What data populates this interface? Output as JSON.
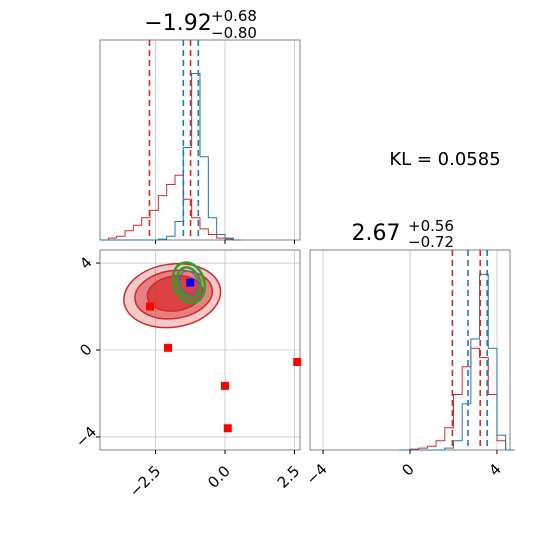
{
  "colors": {
    "red": "#d62728",
    "blue": "#1f77b4",
    "green": "#2ca02c",
    "marker_blue": "#0000ff",
    "marker_red": "#ff0000",
    "grid": "#b0b0b0",
    "frame": "#808080"
  },
  "kl_text": "KL = 0.0585",
  "chart_data": [
    {
      "panel": "top-left",
      "type": "line",
      "title": {
        "main": "−1.92",
        "sup": "+0.68",
        "sub": "−0.80"
      },
      "xlim": [
        -4.5,
        2.7
      ],
      "ylim": [
        0,
        1.0
      ],
      "grid": true,
      "step_x": [
        -4.5,
        -4.2,
        -3.9,
        -3.6,
        -3.3,
        -3.0,
        -2.7,
        -2.4,
        -2.1,
        -1.8,
        -1.5,
        -1.2,
        -0.9,
        -0.6,
        -0.3,
        0.0,
        0.3
      ],
      "series": [
        {
          "color": "red",
          "values": [
            0.0,
            0.01,
            0.02,
            0.05,
            0.08,
            0.12,
            0.16,
            0.24,
            0.3,
            0.35,
            0.22,
            0.12,
            0.06,
            0.03,
            0.01,
            0.005,
            0.0
          ]
        },
        {
          "color": "blue",
          "values": [
            0.0,
            0.0,
            0.0,
            0.0,
            0.0,
            0.0,
            0.0,
            0.005,
            0.02,
            0.1,
            0.5,
            0.9,
            0.45,
            0.12,
            0.03,
            0.01,
            0.0
          ]
        }
      ],
      "vlines": [
        {
          "color": "red",
          "x": -2.72
        },
        {
          "color": "red",
          "x": -1.24
        },
        {
          "color": "blue",
          "x": -1.5
        },
        {
          "color": "blue",
          "x": -0.96
        }
      ]
    },
    {
      "panel": "bottom-left",
      "type": "scatter",
      "xlim": [
        -4.5,
        2.7
      ],
      "ylim": [
        -4.6,
        4.6
      ],
      "xticks": [
        "−2.5",
        "0.0",
        "2.5"
      ],
      "xtick_values": [
        -2.5,
        0.0,
        2.5
      ],
      "yticks": [
        "−4",
        "0",
        "4"
      ],
      "ytick_values": [
        -4,
        0,
        4
      ],
      "grid": true,
      "blue_marker": {
        "x": -1.25,
        "y": 3.1
      },
      "red_markers": [
        {
          "x": -2.7,
          "y": 2.0
        },
        {
          "x": -2.05,
          "y": 0.1
        },
        {
          "x": 0.0,
          "y": -1.65
        },
        {
          "x": 0.1,
          "y": -3.6
        },
        {
          "x": 2.6,
          "y": -0.55
        }
      ],
      "red_contours": [
        {
          "cx": -1.9,
          "cy": 2.5,
          "rx": 1.75,
          "ry": 1.45,
          "opacity": 0.25
        },
        {
          "cx": -1.85,
          "cy": 2.55,
          "rx": 1.4,
          "ry": 1.1,
          "opacity": 0.45
        },
        {
          "cx": -1.8,
          "cy": 2.6,
          "rx": 1.0,
          "ry": 0.8,
          "opacity": 0.7
        }
      ],
      "green_contours": [
        {
          "cx": -1.3,
          "cy": 3.1,
          "rx": 0.55,
          "ry": 0.95
        },
        {
          "cx": -1.3,
          "cy": 3.1,
          "rx": 0.4,
          "ry": 0.72
        }
      ],
      "blue_contours": [
        {
          "cx": -1.3,
          "cy": 3.1,
          "rx": 0.32,
          "ry": 0.55
        }
      ]
    },
    {
      "panel": "bottom-right",
      "type": "line",
      "title": {
        "main": "2.67",
        "sup": "+0.56",
        "sub": "−0.72"
      },
      "xlim": [
        -4.6,
        4.6
      ],
      "ylim": [
        0,
        1.0
      ],
      "xticks": [
        "−4",
        "0",
        "4"
      ],
      "xtick_values": [
        -4,
        0,
        4
      ],
      "grid": true,
      "step_x": [
        -0.5,
        0.0,
        0.4,
        0.8,
        1.2,
        1.6,
        2.0,
        2.4,
        2.8,
        3.2,
        3.6,
        4.0,
        4.4
      ],
      "series": [
        {
          "color": "red",
          "values": [
            0.0,
            0.005,
            0.01,
            0.02,
            0.05,
            0.12,
            0.3,
            0.45,
            0.55,
            0.5,
            0.3,
            0.05,
            0.0
          ]
        },
        {
          "color": "blue",
          "values": [
            0.0,
            0.0,
            0.0,
            0.0,
            0.0,
            0.01,
            0.05,
            0.25,
            0.6,
            0.95,
            0.55,
            0.08,
            0.0
          ]
        }
      ],
      "vlines": [
        {
          "color": "red",
          "x": 1.95
        },
        {
          "color": "red",
          "x": 3.23
        },
        {
          "color": "blue",
          "x": 2.67
        },
        {
          "color": "blue",
          "x": 3.55
        }
      ]
    }
  ]
}
